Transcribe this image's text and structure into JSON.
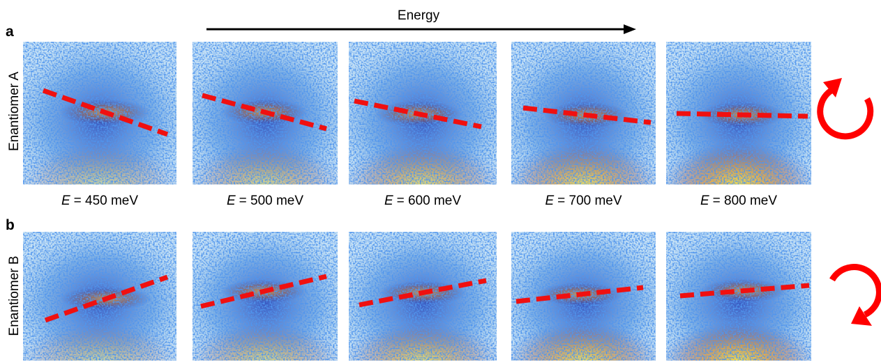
{
  "figure": {
    "arrow_label": "Energy",
    "rows": [
      {
        "panel": "a",
        "label": "Enantiomer A"
      },
      {
        "panel": "b",
        "label": "Enantiomer B"
      }
    ],
    "energy_labels": [
      {
        "symbol": "E",
        "text": "= 450 meV"
      },
      {
        "symbol": "E",
        "text": "= 500 meV"
      },
      {
        "symbol": "E",
        "text": "= 600 meV"
      },
      {
        "symbol": "E",
        "text": "= 700 meV"
      },
      {
        "symbol": "E",
        "text": "= 800 meV"
      }
    ]
  }
}
